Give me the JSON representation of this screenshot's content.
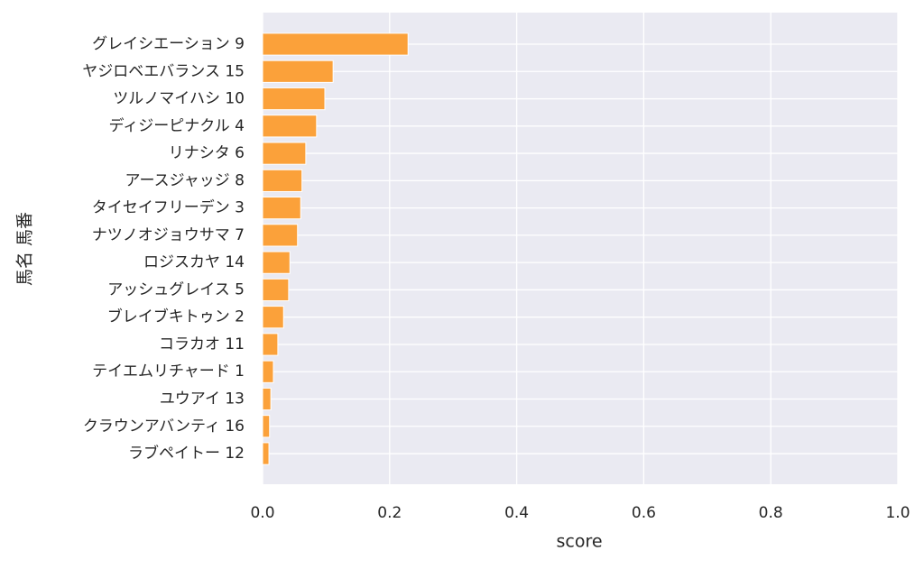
{
  "chart_data": {
    "type": "barh",
    "categories": [
      "グレイシエーション 9",
      "ヤジロベエバランス 15",
      "ツルノマイハシ 10",
      "ディジーピナクル 4",
      "リナシタ 6",
      "アースジャッジ 8",
      "タイセイフリーデン 3",
      "ナツノオジョウサマ 7",
      "ロジスカヤ 14",
      "アッシュグレイス 5",
      "ブレイブキトゥン 2",
      "コラカオ 11",
      "テイエムリチャード 1",
      "ユウアイ 13",
      "クラウンアバンティ 16",
      "ラブペイトー 12"
    ],
    "values": [
      0.229,
      0.111,
      0.098,
      0.085,
      0.068,
      0.062,
      0.06,
      0.055,
      0.043,
      0.041,
      0.033,
      0.024,
      0.017,
      0.013,
      0.011,
      0.01
    ],
    "color": "#fba13a",
    "xlabel": "score",
    "ylabel": "馬名 馬番",
    "xlim": [
      0,
      1
    ],
    "xticks": [
      {
        "value": 0,
        "label": "0.0"
      },
      0.2,
      0.4,
      0.6,
      0.8,
      {
        "value": 1,
        "label": "1.0"
      }
    ],
    "grid": true
  }
}
